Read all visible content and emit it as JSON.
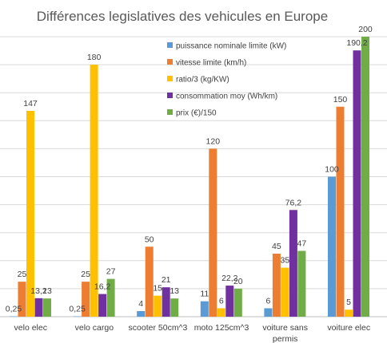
{
  "chart_data": {
    "type": "bar",
    "title": "Différences legislatives des vehicules en Europe",
    "categories": [
      "velo elec",
      "velo cargo",
      "scooter 50cm^3",
      "moto 125cm^3",
      "voiture sans permis",
      "voiture elec"
    ],
    "series": [
      {
        "name": "puissance nominale limite (kW)",
        "color": "#5B9BD5",
        "values": [
          0.25,
          0.25,
          4,
          11,
          6,
          100
        ],
        "labels": [
          "0,25",
          "0,25",
          "4",
          "11",
          "6",
          "100"
        ]
      },
      {
        "name": "vitesse limite (km/h)",
        "color": "#ED7D31",
        "values": [
          25,
          25,
          50,
          120,
          45,
          150
        ],
        "labels": [
          "25",
          "25",
          "50",
          "120",
          "45",
          "150"
        ]
      },
      {
        "name": "ratio/3 (kg/KW)",
        "color": "#FFC000",
        "values": [
          147,
          180,
          15,
          6,
          35,
          5
        ],
        "labels": [
          "147",
          "180",
          "15",
          "6",
          "35",
          "5"
        ]
      },
      {
        "name": "consommation moy (Wh/km)",
        "color": "#7030A0",
        "values": [
          13.2,
          16.2,
          21,
          22.2,
          76.2,
          190.2
        ],
        "labels": [
          "13,2",
          "16,2",
          "21",
          "22,2",
          "76,2",
          "190,2"
        ]
      },
      {
        "name": "prix (€)/150",
        "color": "#70AD47",
        "values": [
          13,
          27,
          13,
          20,
          47,
          200
        ],
        "labels": [
          "13",
          "27",
          "13",
          "20",
          "47",
          "200"
        ]
      }
    ],
    "ylim": [
      0,
      200
    ],
    "grid": true,
    "legend_position": "top-right"
  }
}
